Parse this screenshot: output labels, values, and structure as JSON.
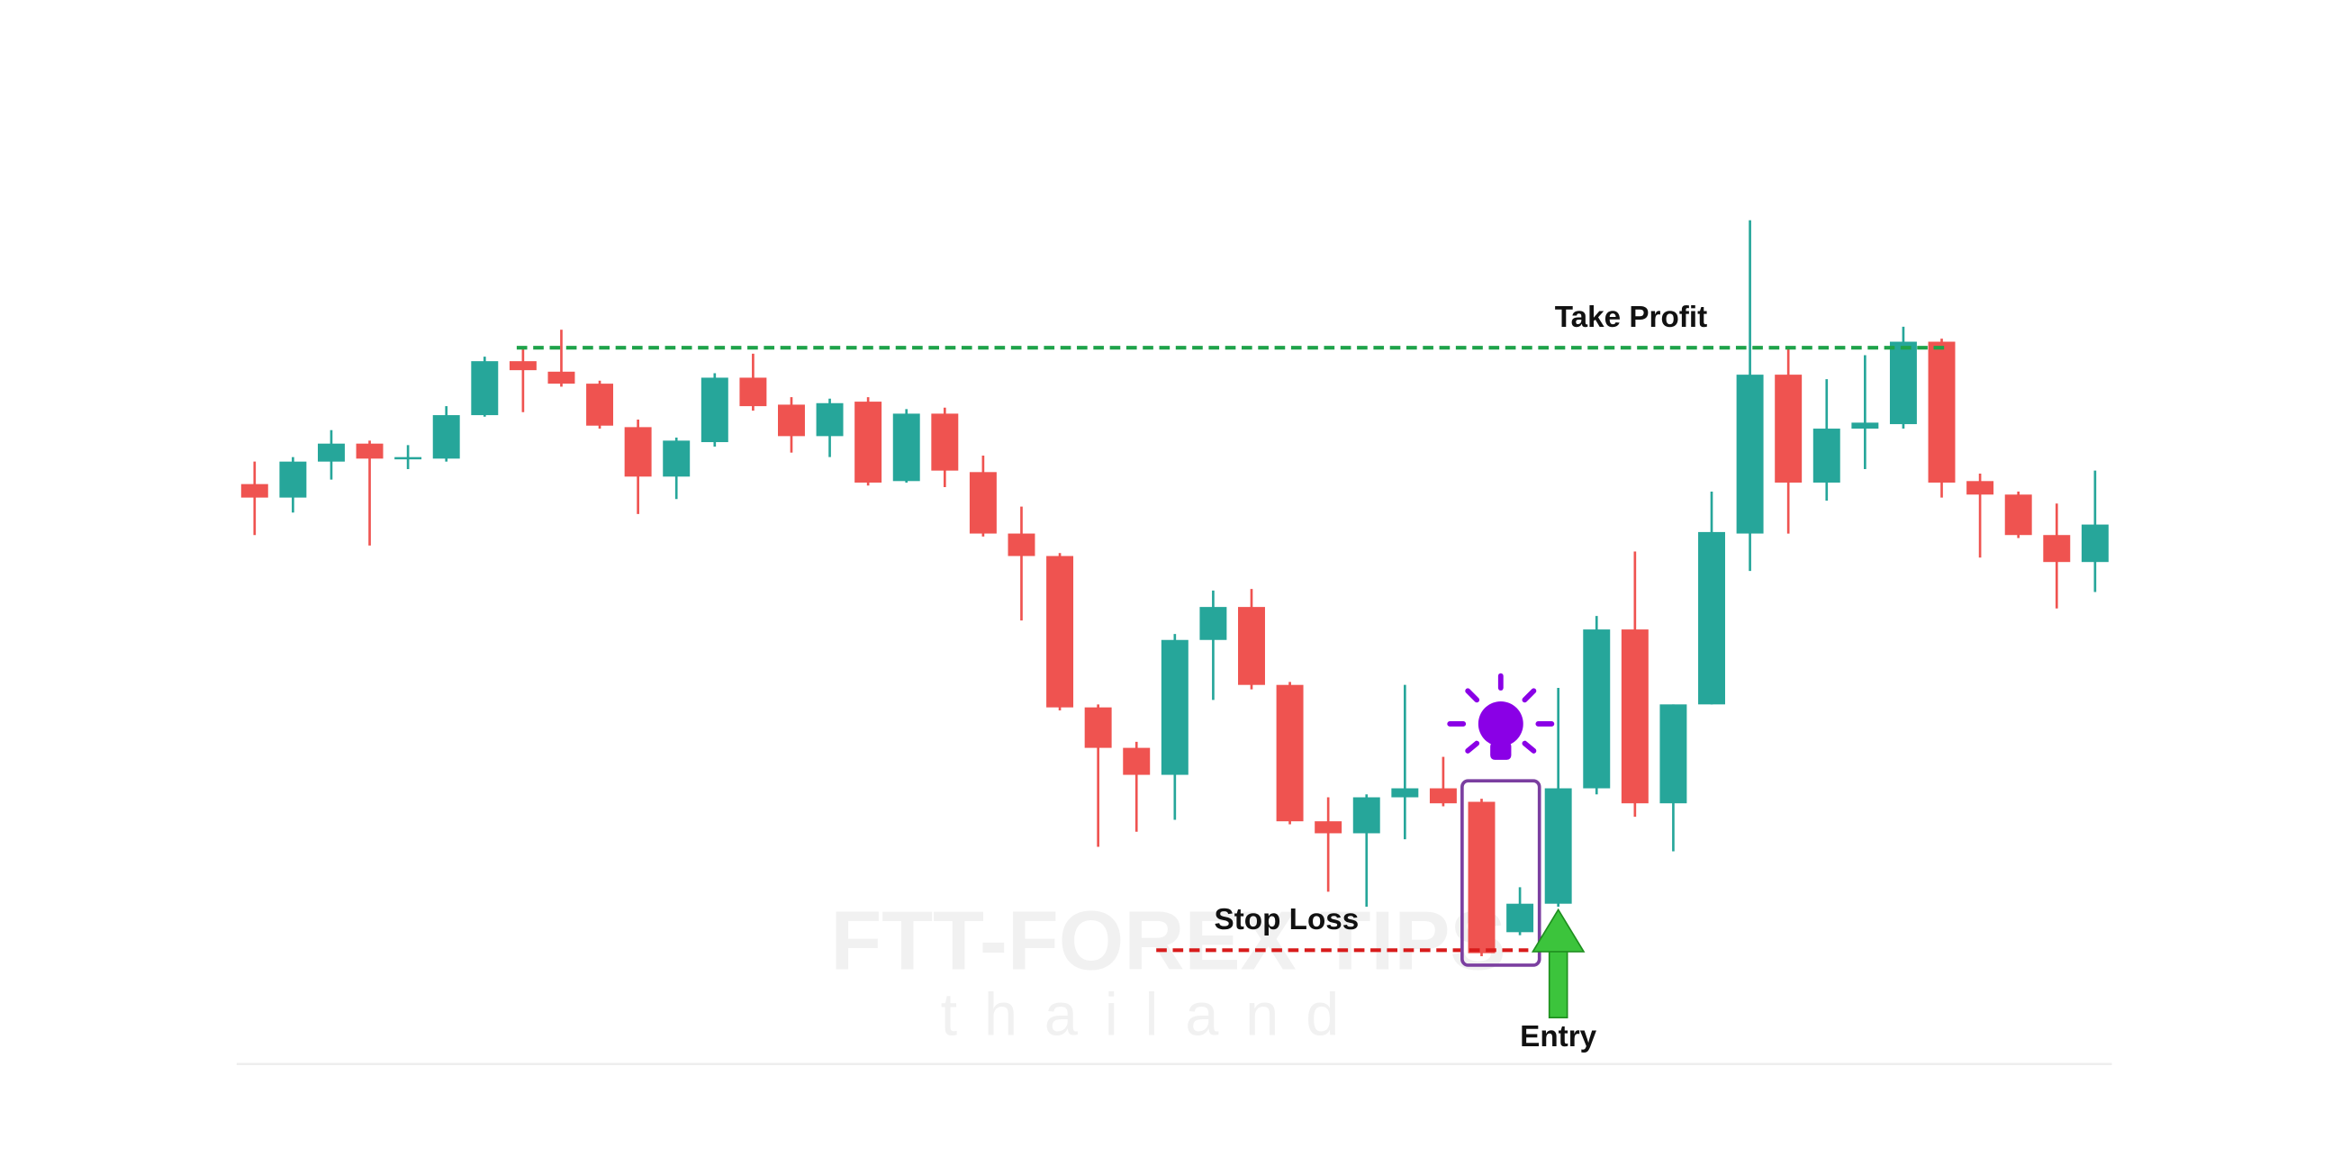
{
  "chart_data": {
    "type": "candlestick",
    "open": [
      448,
      439,
      463,
      475,
      465,
      465,
      494,
      530,
      523,
      515,
      486,
      453,
      476,
      519,
      501,
      480,
      503,
      450,
      495,
      456,
      415,
      400,
      299,
      272,
      254,
      344,
      366,
      314,
      223,
      215,
      239,
      245,
      236,
      149,
      168,
      245,
      351,
      235,
      301,
      415,
      521,
      449,
      485,
      488,
      543,
      450,
      441,
      414,
      396
    ],
    "high": [
      463,
      466,
      484,
      477,
      474,
      500,
      533,
      538,
      551,
      517,
      491,
      479,
      522,
      535,
      506,
      505,
      506,
      498,
      499,
      467,
      433,
      402,
      301,
      276,
      348,
      377,
      378,
      316,
      239,
      241,
      314,
      266,
      238,
      179,
      312,
      360,
      403,
      301,
      443,
      624,
      539,
      518,
      534,
      553,
      545,
      455,
      443,
      435,
      457
    ],
    "low": [
      414,
      429,
      451,
      407,
      458,
      463,
      493,
      496,
      513,
      485,
      428,
      438,
      473,
      497,
      469,
      466,
      447,
      449,
      446,
      413,
      357,
      297,
      206,
      216,
      224,
      304,
      311,
      221,
      176,
      166,
      211,
      233,
      133,
      147,
      166,
      241,
      226,
      203,
      301,
      390,
      415,
      437,
      458,
      485,
      439,
      399,
      412,
      365,
      376
    ],
    "close": [
      439,
      463,
      475,
      465,
      466,
      494,
      530,
      524,
      515,
      487,
      453,
      477,
      519,
      500,
      480,
      502,
      449,
      495,
      457,
      415,
      400,
      299,
      272,
      254,
      344,
      366,
      314,
      223,
      215,
      239,
      245,
      235,
      135,
      168,
      245,
      351,
      235,
      301,
      416,
      521,
      449,
      485,
      489,
      543,
      449,
      441,
      414,
      396,
      421
    ],
    "up_color": "#26a69a",
    "down_color": "#ef5350",
    "ylim": [
      0,
      771
    ],
    "take_profit": {
      "label": "Take Profit",
      "value": 539,
      "color": "#1fa34a"
    },
    "stop_loss": {
      "label": "Stop Loss",
      "value": 137,
      "color": "#d81b1b"
    },
    "entry": {
      "label": "Entry",
      "index": 34
    },
    "watermark": {
      "title": "FTT-FOREX TIPS",
      "subtitle": "thailand"
    }
  }
}
